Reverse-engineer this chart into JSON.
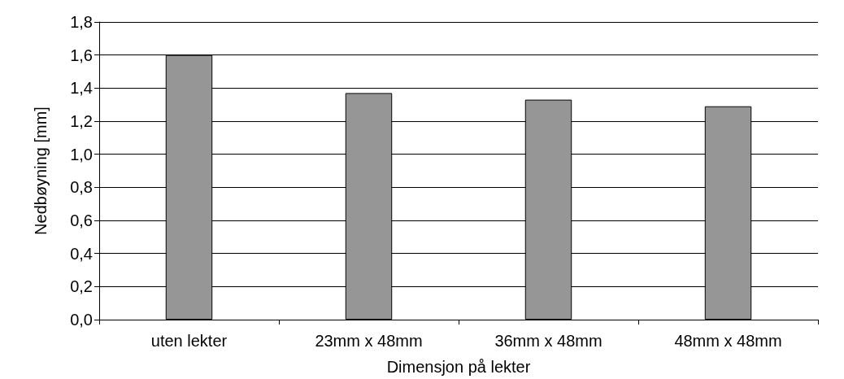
{
  "chart_data": {
    "type": "bar",
    "xlabel": "Dimensjon på lekter",
    "ylabel": "Nedbøyning [mm]",
    "categories": [
      "uten lekter",
      "23mm x 48mm",
      "36mm x 48mm",
      "48mm x 48mm"
    ],
    "values": [
      1.6,
      1.37,
      1.33,
      1.29
    ],
    "color": "#969696",
    "ylim": [
      0,
      1.8
    ],
    "yticks": [
      {
        "value": 0,
        "label": "0,0"
      },
      {
        "value": 0.2,
        "label": "0,2"
      },
      {
        "value": 0.4,
        "label": "0,4"
      },
      {
        "value": 0.6,
        "label": "0,6"
      },
      {
        "value": 0.8,
        "label": "0,8"
      },
      {
        "value": 1.0,
        "label": "1,0"
      },
      {
        "value": 1.2,
        "label": "1,2"
      },
      {
        "value": 1.4,
        "label": "1,4"
      },
      {
        "value": 1.6,
        "label": "1,6"
      },
      {
        "value": 1.8,
        "label": "1,8"
      }
    ],
    "grid": "y"
  }
}
